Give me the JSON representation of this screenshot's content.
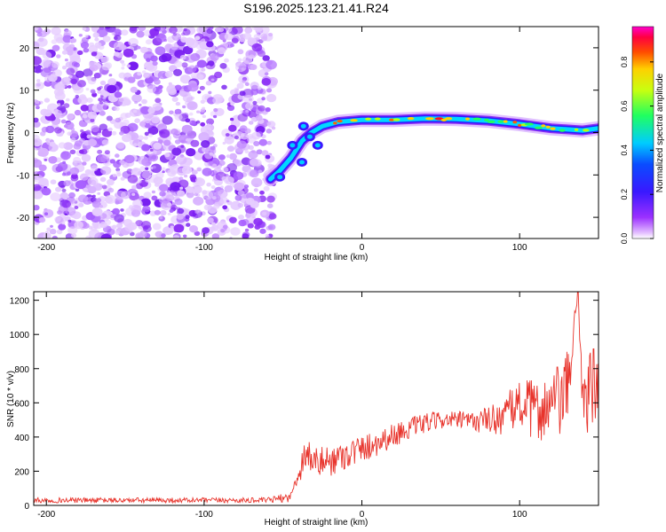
{
  "title": "S196.2025.123.21.41.R24",
  "colors": {
    "snr_line": "#e8342c",
    "axis": "#000000",
    "speckle": "#7a1cf0"
  },
  "chart_data": [
    {
      "type": "heatmap",
      "xlabel": "Height of straight line (km)",
      "ylabel": "Frequency (Hz)",
      "xlim": [
        -208,
        150
      ],
      "ylim": [
        -25,
        25
      ],
      "x_ticks": [
        -200,
        -100,
        0,
        100
      ],
      "y_ticks": [
        -20,
        -10,
        0,
        10,
        20
      ],
      "colorbar": {
        "label": "Normalized spectral amplitude",
        "range": [
          0,
          1
        ],
        "ticks": [
          "0.0",
          "0.2",
          "0.4",
          "0.6",
          "0.8"
        ],
        "colormap": "rainbow (magenta-blue-cyan-green-yellow-red)"
      },
      "noise_region_x": [
        -208,
        -58
      ],
      "signal_trace": {
        "x": [
          -58,
          -52,
          -45,
          -38,
          -32,
          -25,
          -15,
          0,
          20,
          40,
          60,
          80,
          100,
          120,
          140,
          150
        ],
        "frequency": [
          -11,
          -9,
          -6,
          -2,
          0,
          1.5,
          2.5,
          3,
          3,
          3.3,
          3.2,
          2.8,
          2,
          1,
          0.5,
          1
        ]
      }
    },
    {
      "type": "line",
      "xlabel": "Height of straight line (km)",
      "ylabel": "SNR (10 * v/v)",
      "xlim": [
        -208,
        150
      ],
      "ylim": [
        0,
        1250
      ],
      "x_ticks": [
        -200,
        -100,
        0,
        100
      ],
      "y_ticks": [
        0,
        200,
        400,
        600,
        800,
        1000,
        1200
      ],
      "series": [
        {
          "x": [
            -208,
            -180,
            -150,
            -120,
            -90,
            -60,
            -45,
            -40,
            -35,
            -30,
            -20,
            -10,
            0,
            10,
            20,
            30,
            40,
            50,
            60,
            70,
            80,
            90,
            100,
            110,
            120,
            130,
            137,
            140,
            145,
            150
          ],
          "values": [
            30,
            30,
            30,
            30,
            30,
            30,
            50,
            200,
            320,
            250,
            260,
            300,
            330,
            370,
            410,
            450,
            480,
            500,
            500,
            490,
            500,
            520,
            600,
            550,
            580,
            650,
            1250,
            600,
            700,
            650
          ],
          "noise_amplitude": [
            15,
            15,
            15,
            15,
            15,
            15,
            30,
            80,
            100,
            90,
            90,
            90,
            80,
            80,
            70,
            60,
            60,
            50,
            50,
            60,
            80,
            110,
            150,
            180,
            200,
            250,
            0,
            250,
            250,
            250
          ]
        }
      ]
    }
  ]
}
